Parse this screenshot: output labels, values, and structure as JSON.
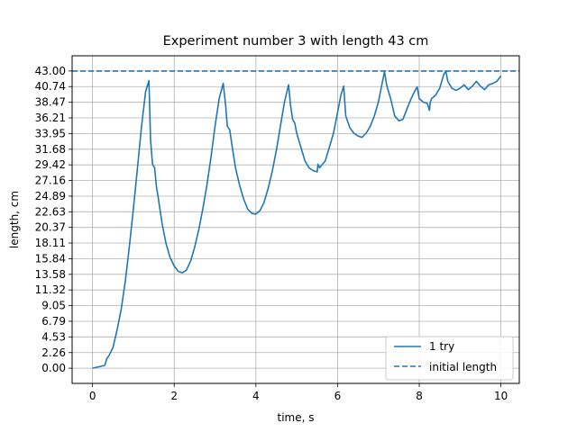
{
  "chart_data": {
    "type": "line",
    "title": "Experiment number 3 with length 43 cm",
    "xlabel": "time, s",
    "ylabel": "length, cm",
    "xlim": [
      -0.5,
      10.45
    ],
    "ylim": [
      -2.2,
      45.2
    ],
    "xticks": [
      0,
      2,
      4,
      6,
      8,
      10
    ],
    "xtick_labels": [
      "0",
      "2",
      "4",
      "6",
      "8",
      "10"
    ],
    "yticks": [
      0,
      2.26,
      4.53,
      6.79,
      9.05,
      11.32,
      13.58,
      15.84,
      18.11,
      20.37,
      22.63,
      24.89,
      27.16,
      29.42,
      31.68,
      33.95,
      36.21,
      38.47,
      40.74,
      43.0
    ],
    "ytick_labels": [
      "0.00",
      "2.26",
      "4.53",
      "6.79",
      "9.05",
      "11.32",
      "13.58",
      "15.84",
      "18.11",
      "20.37",
      "22.63",
      "24.89",
      "27.16",
      "29.42",
      "31.68",
      "33.95",
      "36.21",
      "38.47",
      "40.74",
      "43.00"
    ],
    "grid": true,
    "legend_position": "lower-right",
    "series": [
      {
        "name": "1 try",
        "color": "#1f77b4",
        "style": "solid",
        "x": [
          0,
          0.3,
          0.35,
          0.4,
          0.5,
          0.6,
          0.7,
          0.8,
          0.9,
          1.0,
          1.1,
          1.2,
          1.3,
          1.38,
          1.42,
          1.47,
          1.52,
          1.56,
          1.6,
          1.7,
          1.8,
          1.9,
          2.0,
          2.1,
          2.2,
          2.3,
          2.4,
          2.5,
          2.6,
          2.7,
          2.8,
          2.9,
          3.0,
          3.1,
          3.2,
          3.26,
          3.3,
          3.36,
          3.42,
          3.5,
          3.6,
          3.7,
          3.8,
          3.9,
          4.0,
          4.1,
          4.2,
          4.3,
          4.4,
          4.5,
          4.6,
          4.7,
          4.8,
          4.85,
          4.9,
          4.95,
          5.0,
          5.1,
          5.2,
          5.3,
          5.4,
          5.5,
          5.52,
          5.56,
          5.6,
          5.7,
          5.75,
          5.8,
          5.9,
          6.0,
          6.08,
          6.15,
          6.2,
          6.3,
          6.4,
          6.5,
          6.6,
          6.7,
          6.8,
          6.9,
          7.0,
          7.1,
          7.15,
          7.2,
          7.3,
          7.4,
          7.5,
          7.6,
          7.7,
          7.8,
          7.9,
          7.95,
          8.0,
          8.1,
          8.2,
          8.25,
          8.27,
          8.3,
          8.4,
          8.5,
          8.6,
          8.65,
          8.7,
          8.8,
          8.9,
          9.0,
          9.1,
          9.2,
          9.3,
          9.4,
          9.5,
          9.6,
          9.7,
          9.8,
          9.9,
          10.0
        ],
        "y": [
          0,
          0.4,
          1.4,
          1.8,
          3.0,
          5.5,
          8.5,
          12.5,
          17.5,
          23.0,
          29.0,
          35.0,
          40.0,
          41.6,
          33.0,
          29.5,
          29.0,
          26.5,
          25.0,
          21.0,
          18.0,
          16.0,
          14.8,
          14.0,
          13.8,
          14.2,
          15.5,
          17.5,
          20.0,
          23.0,
          26.5,
          30.5,
          35.0,
          39.0,
          41.2,
          38.0,
          35.0,
          34.5,
          32.0,
          29.0,
          26.5,
          24.5,
          23.0,
          22.4,
          22.3,
          22.8,
          24.0,
          26.0,
          28.5,
          31.5,
          35.0,
          38.5,
          41.0,
          38.0,
          36.0,
          35.5,
          34.0,
          32.0,
          30.0,
          29.0,
          28.6,
          28.4,
          29.5,
          29.0,
          29.3,
          30.0,
          31.0,
          32.0,
          34.0,
          37.0,
          39.5,
          40.8,
          36.5,
          34.8,
          34.0,
          33.6,
          33.4,
          34.0,
          35.0,
          36.5,
          38.5,
          41.5,
          42.9,
          41.0,
          39.0,
          36.5,
          35.8,
          36.0,
          37.5,
          39.0,
          40.2,
          40.7,
          39.0,
          38.5,
          38.3,
          37.3,
          38.5,
          39.0,
          39.5,
          40.5,
          42.5,
          43.0,
          41.5,
          40.5,
          40.2,
          40.5,
          41.0,
          40.3,
          40.8,
          41.5,
          40.8,
          40.3,
          41.0,
          41.2,
          41.5,
          42.3
        ]
      },
      {
        "name": "initial length",
        "color": "#1f77b4",
        "style": "dashed",
        "x": [
          -0.5,
          10.45
        ],
        "y": [
          43.0,
          43.0
        ]
      }
    ]
  }
}
